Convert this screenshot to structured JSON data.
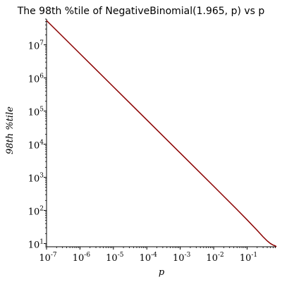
{
  "chart_data": {
    "type": "line",
    "title": "The 98th %tile of NegativeBinomial(1.965, p) vs p",
    "xlabel": "p",
    "ylabel": "98th %tile",
    "x_scale": "log",
    "y_scale": "log",
    "xlim": [
      1e-07,
      0.75
    ],
    "ylim": [
      8,
      60000000
    ],
    "x_ticks": [
      {
        "value": 1e-07,
        "base": "10",
        "exp": "-7"
      },
      {
        "value": 1e-06,
        "base": "10",
        "exp": "-6"
      },
      {
        "value": 1e-05,
        "base": "10",
        "exp": "-5"
      },
      {
        "value": 0.0001,
        "base": "10",
        "exp": "-4"
      },
      {
        "value": 0.001,
        "base": "10",
        "exp": "-3"
      },
      {
        "value": 0.01,
        "base": "10",
        "exp": "-2"
      },
      {
        "value": 0.1,
        "base": "10",
        "exp": "-1"
      }
    ],
    "y_ticks": [
      {
        "value": 10,
        "base": "10",
        "exp": "1"
      },
      {
        "value": 100,
        "base": "10",
        "exp": "2"
      },
      {
        "value": 1000,
        "base": "10",
        "exp": "3"
      },
      {
        "value": 10000,
        "base": "10",
        "exp": "4"
      },
      {
        "value": 100000,
        "base": "10",
        "exp": "5"
      },
      {
        "value": 1000000,
        "base": "10",
        "exp": "6"
      },
      {
        "value": 10000000,
        "base": "10",
        "exp": "7"
      }
    ],
    "series": [
      {
        "color": "#8b0000",
        "x": [
          1e-07,
          1e-06,
          1e-05,
          0.0001,
          0.001,
          0.01,
          0.05,
          0.1,
          0.2,
          0.3,
          0.4,
          0.5,
          0.6,
          0.7,
          0.75
        ],
        "y": [
          54000000,
          5400000,
          540000,
          54000,
          5400,
          538,
          106,
          52,
          25,
          16,
          12,
          10,
          9,
          8.5,
          8
        ]
      }
    ],
    "grid": false,
    "legend": "none"
  }
}
